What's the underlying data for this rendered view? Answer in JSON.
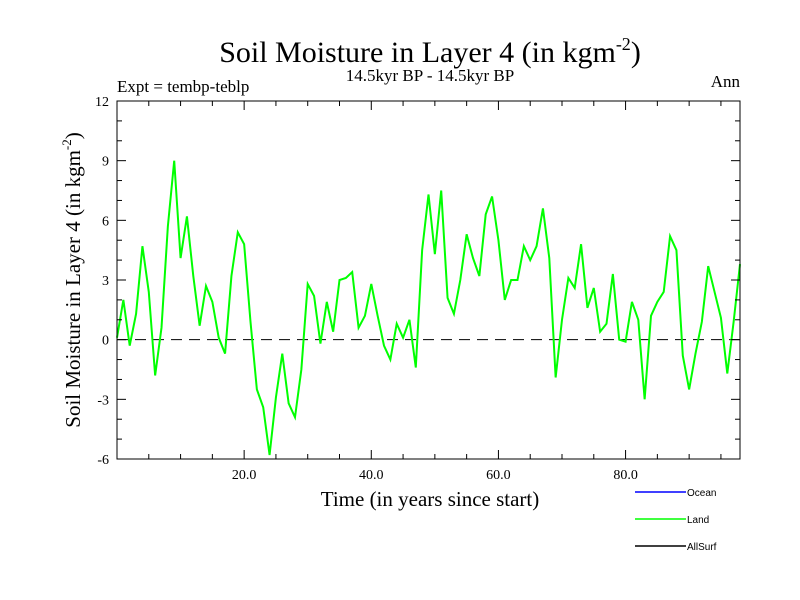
{
  "chart_data": {
    "type": "line",
    "title_main": "Soil Moisture in Layer 4 (in kgm",
    "title_sup": "-2",
    "title_close": ")",
    "subtitle": "14.5kyr BP - 14.5kyr BP",
    "expt_label": "Expt = tembp-teblp",
    "season_label": "Ann",
    "xlabel": "Time (in years since start)",
    "ylabel_main": "Soil Moisture in Layer 4 (in kgm",
    "ylabel_sup": "-2",
    "ylabel_close": ")",
    "xlim": [
      0,
      98
    ],
    "ylim": [
      -6,
      12
    ],
    "xticks": [
      20,
      40,
      60,
      80
    ],
    "xtick_labels": [
      "20.0",
      "40.0",
      "60.0",
      "80.0"
    ],
    "yticks": [
      -6,
      -3,
      0,
      3,
      6,
      9,
      12
    ],
    "ytick_labels": [
      "-6",
      "-3",
      "0",
      "3",
      "6",
      "9",
      "12"
    ],
    "zero_line": 0,
    "legend": [
      {
        "name": "Ocean",
        "color": "#0000ff"
      },
      {
        "name": "Land",
        "color": "#00ff00"
      },
      {
        "name": "AllSurf",
        "color": "#000000"
      }
    ],
    "series": [
      {
        "name": "Land",
        "color": "#00ff00",
        "x": [
          0,
          1,
          2,
          3,
          4,
          5,
          6,
          7,
          8,
          9,
          10,
          11,
          12,
          13,
          14,
          15,
          16,
          17,
          18,
          19,
          20,
          21,
          22,
          23,
          24,
          25,
          26,
          27,
          28,
          29,
          30,
          31,
          32,
          33,
          34,
          35,
          36,
          37,
          38,
          39,
          40,
          41,
          42,
          43,
          44,
          45,
          46,
          47,
          48,
          49,
          50,
          51,
          52,
          53,
          54,
          55,
          56,
          57,
          58,
          59,
          60,
          61,
          62,
          63,
          64,
          65,
          66,
          67,
          68,
          69,
          70,
          71,
          72,
          73,
          74,
          75,
          76,
          77,
          78,
          79,
          80,
          81,
          82,
          83,
          84,
          85,
          86,
          87,
          88,
          89,
          90,
          91,
          92,
          93,
          94,
          95,
          96,
          97,
          98
        ],
        "values": [
          0.1,
          2.0,
          -0.3,
          1.3,
          4.7,
          2.4,
          -1.8,
          0.6,
          5.7,
          9.0,
          4.1,
          6.2,
          3.2,
          0.7,
          2.7,
          1.9,
          0.1,
          -0.7,
          3.2,
          5.4,
          4.8,
          0.9,
          -2.5,
          -3.4,
          -5.8,
          -2.9,
          -0.7,
          -3.2,
          -3.9,
          -1.5,
          2.8,
          2.2,
          -0.2,
          1.9,
          0.4,
          3.0,
          3.1,
          3.4,
          0.6,
          1.2,
          2.8,
          1.2,
          -0.3,
          -1.0,
          0.8,
          0.1,
          1.0,
          -1.4,
          4.5,
          7.3,
          4.3,
          7.5,
          2.1,
          1.3,
          3.0,
          5.3,
          4.1,
          3.2,
          6.3,
          7.2,
          5.0,
          2.0,
          3.0,
          3.0,
          4.7,
          4.0,
          4.7,
          6.6,
          4.1,
          -1.9,
          1.0,
          3.1,
          2.6,
          4.8,
          1.6,
          2.6,
          0.4,
          0.8,
          3.3,
          0.0,
          -0.1,
          1.9,
          1.0,
          -3.0,
          1.2,
          1.9,
          2.4,
          5.2,
          4.5,
          -0.8,
          -2.5,
          -0.7,
          0.9,
          3.7,
          2.4,
          1.1,
          -1.7,
          0.9,
          3.8
        ]
      }
    ]
  }
}
